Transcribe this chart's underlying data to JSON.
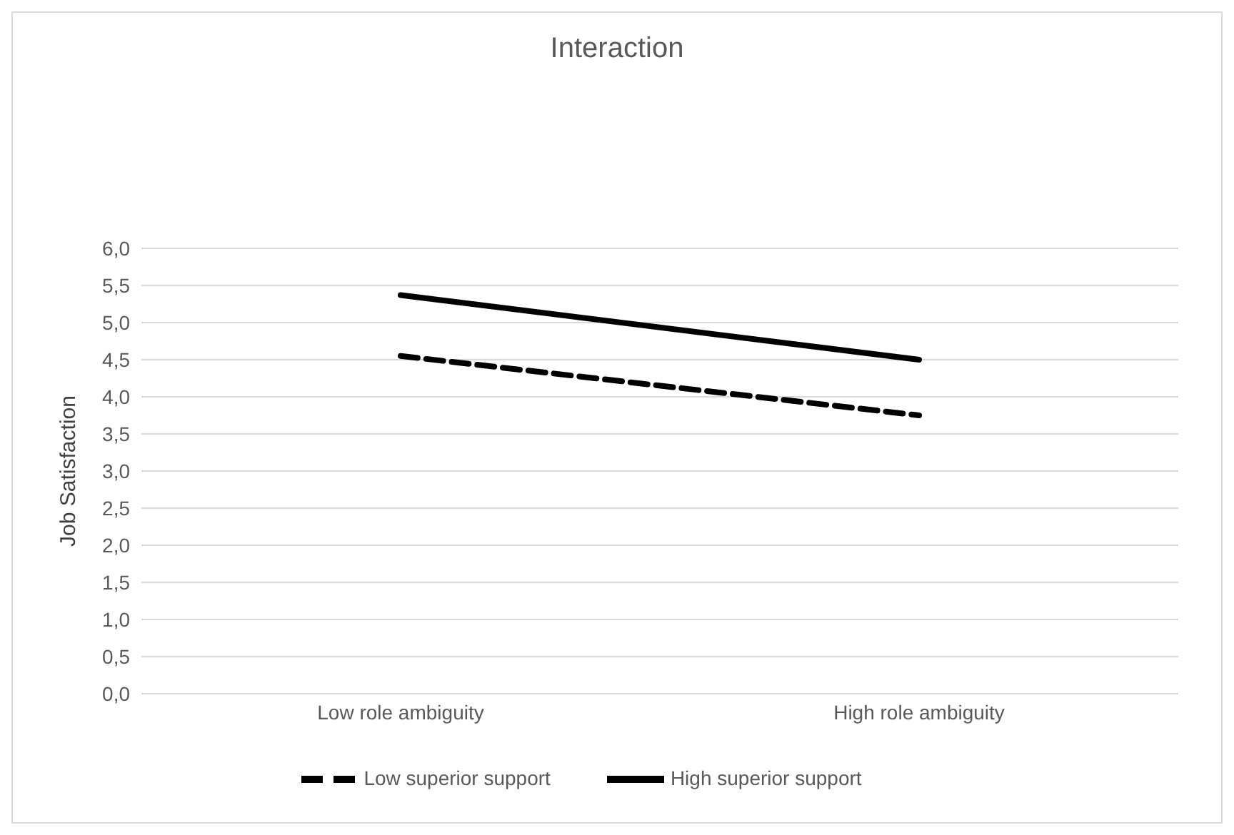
{
  "chart_data": {
    "type": "line",
    "title": "Interaction",
    "ylabel": "Job Satisfaction",
    "categories": [
      "Low role ambiguity",
      "High role ambiguity"
    ],
    "series": [
      {
        "name": "Low superior support",
        "color": "#000000",
        "values": [
          4.55,
          3.75
        ],
        "line_style": "dashed"
      },
      {
        "name": "High superior support",
        "color": "#000000",
        "values": [
          5.37,
          4.5
        ],
        "line_style": "solid"
      }
    ],
    "ylim": [
      0,
      6
    ],
    "yticks": [
      {
        "value": 0,
        "label": "0,0"
      },
      {
        "value": 0.5,
        "label": "0,5"
      },
      {
        "value": 1,
        "label": "1,0"
      },
      {
        "value": 1.5,
        "label": "1,5"
      },
      {
        "value": 2,
        "label": "2,0"
      },
      {
        "value": 2.5,
        "label": "2,5"
      },
      {
        "value": 3,
        "label": "3,0"
      },
      {
        "value": 3.5,
        "label": "3,5"
      },
      {
        "value": 4,
        "label": "4,0"
      },
      {
        "value": 4.5,
        "label": "4,5"
      },
      {
        "value": 5,
        "label": "5,0"
      },
      {
        "value": 5.5,
        "label": "5,5"
      },
      {
        "value": 6,
        "label": "6,0"
      }
    ],
    "grid": "y",
    "legend": "bottom",
    "marker": "none"
  }
}
